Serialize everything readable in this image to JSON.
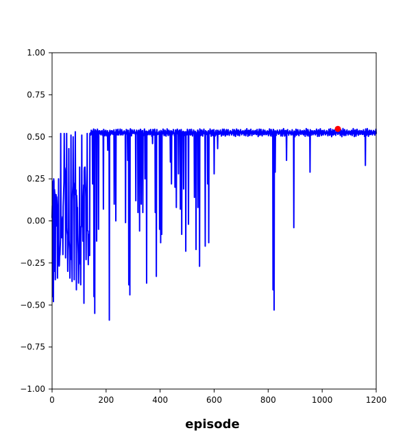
{
  "chart_data": {
    "type": "line",
    "title": "",
    "xlabel": "episode",
    "ylabel": "",
    "xlim": [
      0,
      1200
    ],
    "ylim": [
      -1.0,
      1.0
    ],
    "xticks": [
      0,
      200,
      400,
      600,
      800,
      1000,
      1200
    ],
    "xtick_labels": [
      "0",
      "200",
      "400",
      "600",
      "800",
      "1000",
      "1200"
    ],
    "yticks": [
      -1.0,
      -0.75,
      -0.5,
      -0.25,
      0.0,
      0.25,
      0.5,
      0.75,
      1.0
    ],
    "ytick_labels": [
      "−1.00",
      "−0.75",
      "−0.50",
      "−0.25",
      "0.00",
      "0.25",
      "0.50",
      "0.75",
      "1.00"
    ],
    "grid": false,
    "series": [
      {
        "color": "#0000ff",
        "baseline": 0.525,
        "dips": [
          [
            2,
            -0.45
          ],
          [
            5,
            -0.48
          ],
          [
            8,
            -0.3
          ],
          [
            12,
            -0.35
          ],
          [
            16,
            -0.03
          ],
          [
            20,
            -0.34
          ],
          [
            24,
            0.25
          ],
          [
            28,
            -0.18
          ],
          [
            32,
            0.52
          ],
          [
            36,
            -0.1
          ],
          [
            40,
            -0.2
          ],
          [
            45,
            0.52
          ],
          [
            50,
            -0.22
          ],
          [
            54,
            0.52
          ],
          [
            58,
            -0.3
          ],
          [
            62,
            0.43
          ],
          [
            66,
            -0.34
          ],
          [
            70,
            0.51
          ],
          [
            74,
            -0.36
          ],
          [
            78,
            0.5
          ],
          [
            82,
            -0.35
          ],
          [
            86,
            0.53
          ],
          [
            90,
            -0.41
          ],
          [
            94,
            0.08
          ],
          [
            98,
            -0.37
          ],
          [
            102,
            0.32
          ],
          [
            106,
            -0.38
          ],
          [
            110,
            0.51
          ],
          [
            114,
            -0.12
          ],
          [
            118,
            -0.49
          ],
          [
            122,
            0.32
          ],
          [
            126,
            -0.23
          ],
          [
            130,
            0.52
          ],
          [
            134,
            -0.26
          ],
          [
            140,
            0.52
          ],
          [
            150,
            0.22
          ],
          [
            155,
            -0.45
          ],
          [
            158,
            -0.55
          ],
          [
            165,
            -0.12
          ],
          [
            172,
            -0.05
          ],
          [
            180,
            0.52
          ],
          [
            190,
            0.07
          ],
          [
            200,
            0.52
          ],
          [
            206,
            0.42
          ],
          [
            212,
            -0.59
          ],
          [
            218,
            0.52
          ],
          [
            230,
            0.1
          ],
          [
            236,
            0.0
          ],
          [
            248,
            0.52
          ],
          [
            260,
            0.52
          ],
          [
            272,
            -0.01
          ],
          [
            280,
            0.36
          ],
          [
            284,
            -0.38
          ],
          [
            288,
            -0.44
          ],
          [
            300,
            0.52
          ],
          [
            310,
            0.12
          ],
          [
            318,
            0.05
          ],
          [
            324,
            -0.06
          ],
          [
            330,
            0.1
          ],
          [
            336,
            0.05
          ],
          [
            344,
            0.25
          ],
          [
            350,
            -0.37
          ],
          [
            362,
            0.52
          ],
          [
            372,
            0.46
          ],
          [
            382,
            0.05
          ],
          [
            386,
            -0.33
          ],
          [
            394,
            0.52
          ],
          [
            398,
            -0.05
          ],
          [
            402,
            -0.13
          ],
          [
            406,
            -0.08
          ],
          [
            412,
            0.52
          ],
          [
            425,
            0.52
          ],
          [
            438,
            0.35
          ],
          [
            442,
            0.22
          ],
          [
            450,
            0.52
          ],
          [
            455,
            0.2
          ],
          [
            460,
            0.08
          ],
          [
            468,
            0.28
          ],
          [
            475,
            0.07
          ],
          [
            480,
            -0.08
          ],
          [
            487,
            0.19
          ],
          [
            495,
            -0.18
          ],
          [
            505,
            -0.02
          ],
          [
            515,
            0.52
          ],
          [
            527,
            0.14
          ],
          [
            533,
            -0.17
          ],
          [
            540,
            0.08
          ],
          [
            546,
            -0.27
          ],
          [
            560,
            0.52
          ],
          [
            567,
            -0.15
          ],
          [
            576,
            0.22
          ],
          [
            580,
            -0.13
          ],
          [
            590,
            0.52
          ],
          [
            600,
            0.28
          ],
          [
            613,
            0.43
          ],
          [
            700,
            0.52
          ],
          [
            818,
            -0.41
          ],
          [
            822,
            -0.53
          ],
          [
            826,
            0.29
          ],
          [
            868,
            0.36
          ],
          [
            895,
            -0.04
          ],
          [
            955,
            0.29
          ],
          [
            1075,
            0.52
          ],
          [
            1160,
            0.33
          ],
          [
            1200,
            0.52
          ]
        ]
      }
    ],
    "marker": {
      "x": 1058,
      "y": 0.547,
      "color": "#ff0000"
    }
  }
}
